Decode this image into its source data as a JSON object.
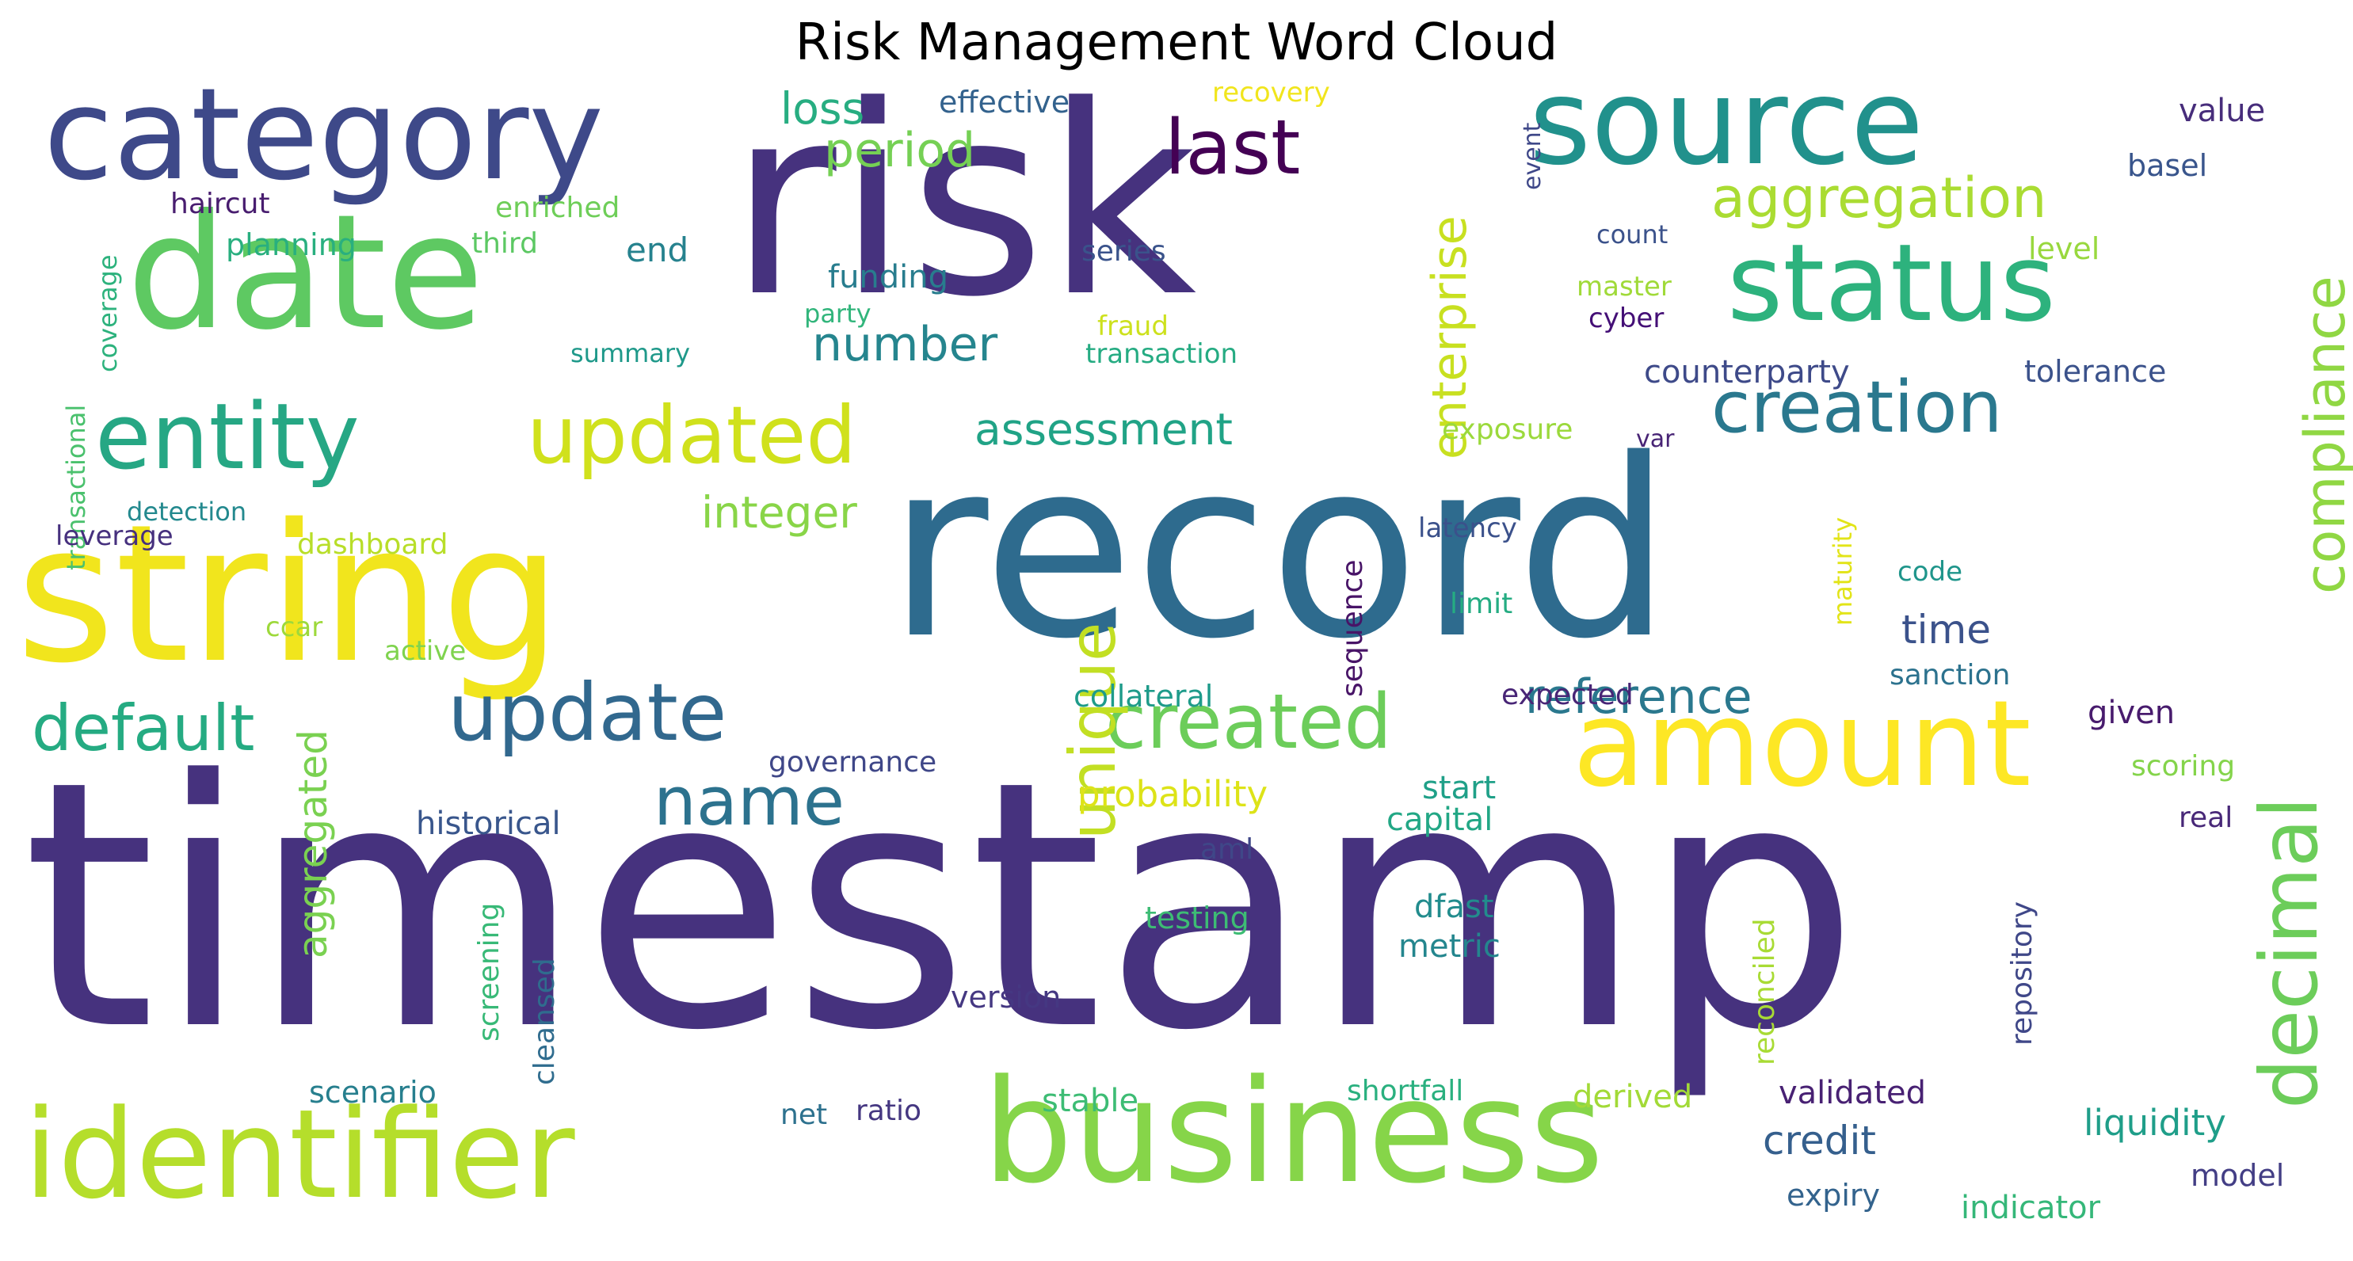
{
  "title": "Risk Management Word Cloud",
  "palette": "viridis",
  "words": [
    {
      "text": "timestamp",
      "color": "#46327e"
    },
    {
      "text": "record",
      "color": "#2e6b8e"
    },
    {
      "text": "risk",
      "color": "#46327e"
    },
    {
      "text": "string",
      "color": "#f1e51d"
    },
    {
      "text": "business",
      "color": "#86d549"
    },
    {
      "text": "identifier",
      "color": "#b5de2b"
    },
    {
      "text": "date",
      "color": "#5ec962"
    },
    {
      "text": "category",
      "color": "#3e4989"
    },
    {
      "text": "source",
      "color": "#21918c"
    },
    {
      "text": "amount",
      "color": "#fde725"
    },
    {
      "text": "status",
      "color": "#2db27d"
    },
    {
      "text": "entity",
      "color": "#26a784"
    },
    {
      "text": "updated",
      "color": "#d0e11c"
    },
    {
      "text": "update",
      "color": "#31688e"
    },
    {
      "text": "decimal",
      "color": "#6ccd5a"
    },
    {
      "text": "creation",
      "color": "#2a788e"
    },
    {
      "text": "created",
      "color": "#6ccd5a"
    },
    {
      "text": "name",
      "color": "#2c728e"
    },
    {
      "text": "default",
      "color": "#25ab82"
    },
    {
      "text": "unique",
      "color": "#c2df23"
    },
    {
      "text": "compliance",
      "color": "#90d743"
    },
    {
      "text": "last",
      "color": "#440154"
    },
    {
      "text": "enterprise",
      "color": "#c8e020"
    },
    {
      "text": "aggregation",
      "color": "#aadc32"
    },
    {
      "text": "reference",
      "color": "#2a788e"
    },
    {
      "text": "number",
      "color": "#25858e"
    },
    {
      "text": "assessment",
      "color": "#20a386"
    },
    {
      "text": "period",
      "color": "#75d054"
    },
    {
      "text": "integer",
      "color": "#89d548"
    },
    {
      "text": "credit",
      "color": "#355f8d"
    },
    {
      "text": "aggregated",
      "color": "#7ad151"
    },
    {
      "text": "liquidity",
      "color": "#1f9e89"
    },
    {
      "text": "loss",
      "color": "#27ad81"
    },
    {
      "text": "time",
      "color": "#3b528b"
    },
    {
      "text": "probability",
      "color": "#dde318"
    },
    {
      "text": "indicator",
      "color": "#35b779"
    },
    {
      "text": "stable",
      "color": "#3dbc74"
    },
    {
      "text": "validated",
      "color": "#482173"
    },
    {
      "text": "derived",
      "color": "#a2da37"
    },
    {
      "text": "counterparty",
      "color": "#3e4a89"
    },
    {
      "text": "effective",
      "color": "#33628d"
    },
    {
      "text": "funding",
      "color": "#287d8e"
    },
    {
      "text": "start",
      "color": "#1fa088"
    },
    {
      "text": "capital",
      "color": "#22a785"
    },
    {
      "text": "historical",
      "color": "#39568c"
    },
    {
      "text": "collateral",
      "color": "#1e9b8a"
    },
    {
      "text": "governance",
      "color": "#3f4788"
    },
    {
      "text": "exposure",
      "color": "#9bd93c"
    },
    {
      "text": "expected",
      "color": "#482576"
    },
    {
      "text": "given",
      "color": "#481b6d"
    },
    {
      "text": "reconciled",
      "color": "#a8db34"
    },
    {
      "text": "repository",
      "color": "#3f4788"
    },
    {
      "text": "screening",
      "color": "#38b977"
    },
    {
      "text": "cleansed",
      "color": "#2f6c8e"
    },
    {
      "text": "sequence",
      "color": "#481467"
    },
    {
      "text": "maturity",
      "color": "#e2e418"
    },
    {
      "text": "transactional",
      "color": "#4ac16d"
    },
    {
      "text": "coverage",
      "color": "#2db27d"
    },
    {
      "text": "version",
      "color": "#453882"
    },
    {
      "text": "dfast",
      "color": "#228c8d"
    },
    {
      "text": "metric",
      "color": "#24868e"
    },
    {
      "text": "testing",
      "color": "#3dbc74"
    },
    {
      "text": "tolerance",
      "color": "#3b528b"
    },
    {
      "text": "value",
      "color": "#472d7b"
    },
    {
      "text": "basel",
      "color": "#39558c"
    },
    {
      "text": "level",
      "color": "#98d83e"
    },
    {
      "text": "sanction",
      "color": "#2c728e"
    },
    {
      "text": "code",
      "color": "#1f958b"
    },
    {
      "text": "limit",
      "color": "#25ac82"
    },
    {
      "text": "latency",
      "color": "#3b518b"
    },
    {
      "text": "scoring",
      "color": "#84d44b"
    },
    {
      "text": "real",
      "color": "#482878"
    },
    {
      "text": "model",
      "color": "#433e85"
    },
    {
      "text": "expiry",
      "color": "#33638d"
    },
    {
      "text": "shortfall",
      "color": "#2ab07f"
    },
    {
      "text": "net",
      "color": "#2d718e"
    },
    {
      "text": "ratio",
      "color": "#453781"
    },
    {
      "text": "scenario",
      "color": "#277f8e"
    },
    {
      "text": "haircut",
      "color": "#481d6f"
    },
    {
      "text": "enriched",
      "color": "#6ece58"
    },
    {
      "text": "planning",
      "color": "#29af7f"
    },
    {
      "text": "third",
      "color": "#5cc863"
    },
    {
      "text": "end",
      "color": "#26828e"
    },
    {
      "text": "series",
      "color": "#3a538b"
    },
    {
      "text": "party",
      "color": "#31b57b"
    },
    {
      "text": "fraud",
      "color": "#cde11d"
    },
    {
      "text": "transaction",
      "color": "#25ab82"
    },
    {
      "text": "summary",
      "color": "#1f998a"
    },
    {
      "text": "recovery",
      "color": "#f1e51d"
    },
    {
      "text": "event",
      "color": "#3f4889"
    },
    {
      "text": "count",
      "color": "#3b528b"
    },
    {
      "text": "master",
      "color": "#a0da39"
    },
    {
      "text": "cyber",
      "color": "#440f76"
    },
    {
      "text": "var",
      "color": "#482475"
    },
    {
      "text": "detection",
      "color": "#23898e"
    },
    {
      "text": "leverage",
      "color": "#46307e"
    },
    {
      "text": "dashboard",
      "color": "#b8de29"
    },
    {
      "text": "ccar",
      "color": "#9dd93b"
    },
    {
      "text": "active",
      "color": "#7fd34e"
    },
    {
      "text": "aml",
      "color": "#3f4788"
    }
  ]
}
